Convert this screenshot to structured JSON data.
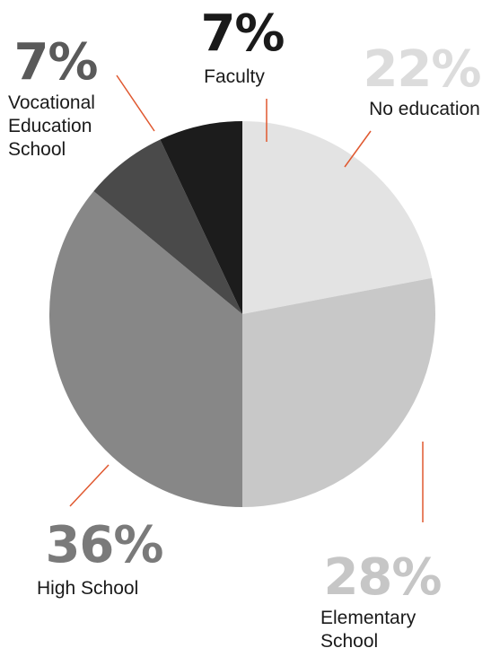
{
  "chart_data": {
    "type": "pie",
    "slices": [
      {
        "label": "No education",
        "value": 22,
        "percent_text": "22%",
        "color": "#e3e3e3",
        "pct_color": "#dcdcdc",
        "label_lines": [
          "No education"
        ]
      },
      {
        "label": "Elementary School",
        "value": 28,
        "percent_text": "28%",
        "color": "#c8c8c8",
        "pct_color": "#c6c6c6",
        "label_lines": [
          "Elementary",
          "School"
        ]
      },
      {
        "label": "High School",
        "value": 36,
        "percent_text": "36%",
        "color": "#878787",
        "pct_color": "#7a7a7a",
        "label_lines": [
          "High School"
        ]
      },
      {
        "label": "Vocational Education School",
        "value": 7,
        "percent_text": "7%",
        "color": "#4a4a4a",
        "pct_color": "#5a5a5a",
        "label_lines": [
          "Vocational",
          "Education",
          "School"
        ]
      },
      {
        "label": "Faculty",
        "value": 7,
        "percent_text": "7%",
        "color": "#1c1c1c",
        "pct_color": "#1a1a1a",
        "label_lines": [
          "Faculty"
        ]
      }
    ],
    "leader_line_color": "#e0582f",
    "label_text_color": "#1a1a1a"
  }
}
